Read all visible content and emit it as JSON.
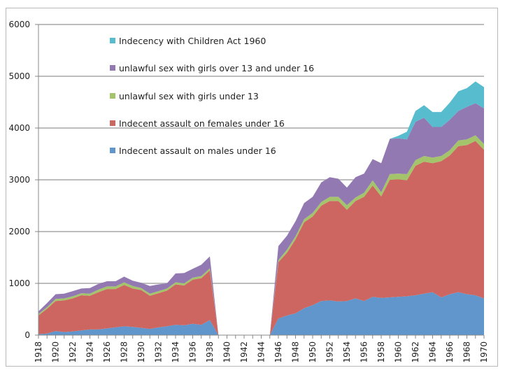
{
  "chart_data": {
    "type": "area",
    "stacked": true,
    "title": "",
    "xlabel": "",
    "ylabel": "",
    "ylim": [
      0,
      6000
    ],
    "yticks": [
      0,
      1000,
      2000,
      3000,
      4000,
      5000,
      6000
    ],
    "xtick_labels": [
      "1918",
      "1920",
      "1922",
      "1924",
      "1926",
      "1928",
      "1930",
      "1932",
      "1934",
      "1936",
      "1938",
      "1940",
      "1942",
      "1944",
      "1946",
      "1948",
      "1950",
      "1952",
      "1954",
      "1956",
      "1958",
      "1960",
      "1962",
      "1964",
      "1966",
      "1968",
      "1970"
    ],
    "grid": "horizontal",
    "legend_position": "top-left-inside",
    "x": [
      1918,
      1919,
      1920,
      1921,
      1922,
      1923,
      1924,
      1925,
      1926,
      1927,
      1928,
      1929,
      1930,
      1931,
      1932,
      1933,
      1934,
      1935,
      1936,
      1937,
      1938,
      1939,
      1940,
      1941,
      1942,
      1943,
      1944,
      1945,
      1946,
      1947,
      1948,
      1949,
      1950,
      1951,
      1952,
      1953,
      1954,
      1955,
      1956,
      1957,
      1958,
      1959,
      1960,
      1961,
      1962,
      1963,
      1964,
      1965,
      1966,
      1967,
      1968,
      1969,
      1970
    ],
    "series": [
      {
        "name": "Indecent assault on males under 16",
        "color": "#6096cb",
        "values": [
          20,
          30,
          80,
          60,
          70,
          90,
          110,
          110,
          130,
          150,
          170,
          160,
          140,
          120,
          150,
          170,
          200,
          190,
          220,
          200,
          290,
          0,
          0,
          0,
          0,
          0,
          0,
          0,
          320,
          380,
          420,
          520,
          580,
          660,
          670,
          650,
          660,
          710,
          660,
          740,
          720,
          730,
          740,
          750,
          770,
          800,
          830,
          730,
          790,
          830,
          790,
          770,
          710
        ]
      },
      {
        "name": "Indecent assault on females under 16",
        "color": "#cd6660",
        "values": [
          360,
          480,
          580,
          610,
          640,
          680,
          650,
          720,
          760,
          740,
          800,
          740,
          730,
          640,
          660,
          690,
          780,
          770,
          850,
          900,
          960,
          0,
          0,
          0,
          0,
          0,
          0,
          0,
          1090,
          1210,
          1430,
          1660,
          1710,
          1840,
          1920,
          1940,
          1760,
          1880,
          2010,
          2150,
          1960,
          2270,
          2270,
          2240,
          2500,
          2550,
          2490,
          2630,
          2680,
          2820,
          2880,
          2980,
          2870
        ]
      },
      {
        "name": "unlawful sex with girls under 13",
        "color": "#a4c46b",
        "values": [
          30,
          30,
          40,
          40,
          40,
          40,
          40,
          50,
          50,
          50,
          50,
          50,
          40,
          40,
          40,
          40,
          40,
          40,
          40,
          40,
          40,
          0,
          0,
          0,
          0,
          0,
          0,
          0,
          40,
          60,
          60,
          60,
          70,
          70,
          80,
          80,
          90,
          70,
          80,
          100,
          80,
          110,
          110,
          120,
          110,
          110,
          110,
          100,
          100,
          110,
          110,
          110,
          110
        ]
      },
      {
        "name": "unlawful sex with girls over 13 and under 16",
        "color": "#9279b2",
        "values": [
          50,
          80,
          90,
          90,
          100,
          90,
          110,
          110,
          100,
          100,
          110,
          100,
          100,
          150,
          130,
          100,
          170,
          200,
          170,
          220,
          230,
          0,
          0,
          0,
          0,
          0,
          0,
          0,
          270,
          270,
          290,
          310,
          310,
          380,
          380,
          350,
          340,
          390,
          370,
          410,
          560,
          680,
          680,
          670,
          740,
          740,
          590,
          560,
          590,
          570,
          630,
          620,
          690
        ]
      },
      {
        "name": "Indecency with Children Act 1960",
        "color": "#58bccf",
        "values": [
          0,
          0,
          0,
          0,
          0,
          0,
          0,
          0,
          0,
          0,
          0,
          0,
          0,
          0,
          0,
          0,
          0,
          0,
          0,
          0,
          0,
          0,
          0,
          0,
          0,
          0,
          0,
          0,
          0,
          0,
          0,
          0,
          0,
          0,
          0,
          0,
          0,
          0,
          0,
          0,
          0,
          0,
          50,
          150,
          210,
          240,
          290,
          290,
          330,
          380,
          360,
          420,
          410
        ]
      }
    ],
    "legend_order": [
      4,
      3,
      2,
      1,
      0
    ]
  },
  "colors": {
    "gridline": "#bdbdbd",
    "axis": "#888888",
    "frame": "#b9b9b9"
  }
}
